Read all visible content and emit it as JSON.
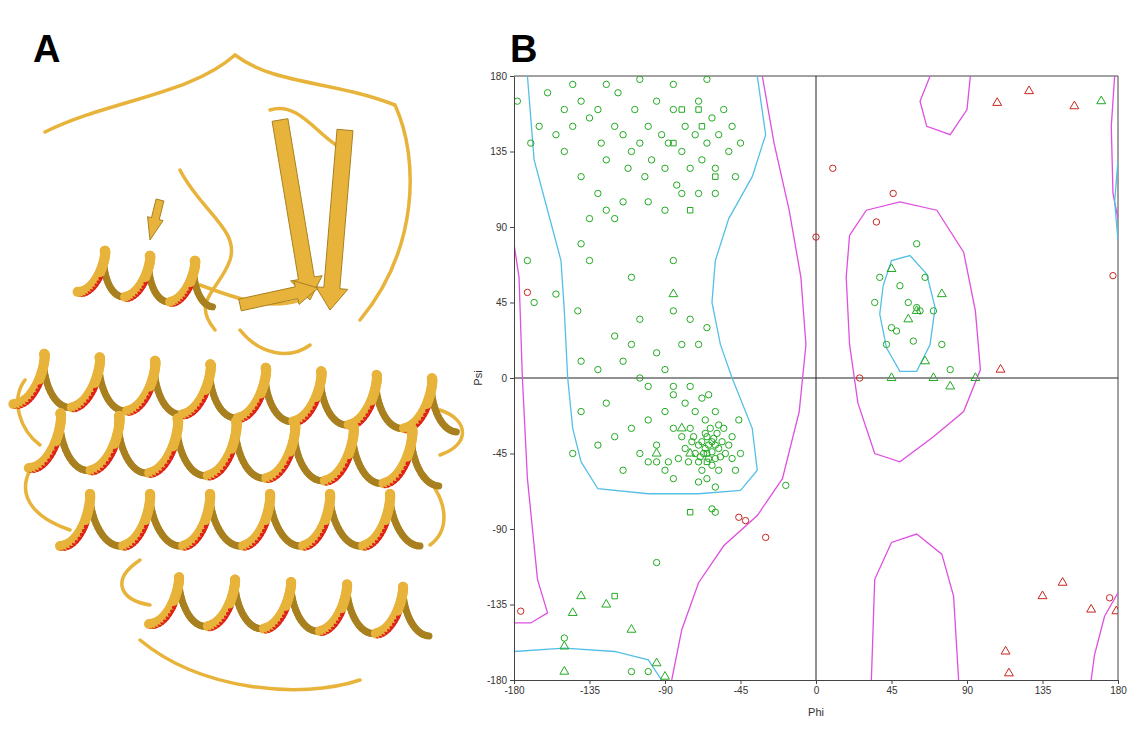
{
  "panel_labels": [
    "A",
    "B"
  ],
  "chart_data": {
    "type": "scatter",
    "x_label": "Phi",
    "y_label": "Psi",
    "xlim": [
      -180,
      180
    ],
    "ylim": [
      -180,
      180
    ],
    "xticks": [
      -180,
      -135,
      -90,
      -45,
      0,
      45,
      90,
      135,
      180
    ],
    "yticks": [
      -180,
      -135,
      -90,
      -45,
      0,
      45,
      90,
      135,
      180
    ],
    "series": [
      {
        "type": "line",
        "color": "#df4fe0",
        "x": [
          -180,
          -177,
          -175,
          -172,
          -166,
          -160,
          -170,
          -180,
          null,
          -32,
          -25,
          -16,
          -9,
          -6,
          -10,
          -20,
          -35,
          -55,
          -70,
          -80,
          -86,
          null,
          20,
          30,
          50,
          72,
          88,
          95,
          98,
          88,
          70,
          50,
          35,
          25,
          20,
          18,
          20,
          null,
          33,
          35,
          45,
          60,
          75,
          82,
          85,
          null,
          68,
          62,
          66,
          80,
          90,
          92,
          null,
          180,
          177,
          176,
          178,
          null,
          180,
          172,
          166,
          164
        ],
        "values": [
          80,
          60,
          0,
          -60,
          -120,
          -140,
          -146,
          -146,
          null,
          180,
          140,
          100,
          60,
          20,
          -20,
          -60,
          -82,
          -100,
          -122,
          -150,
          -180,
          null,
          85,
          100,
          105,
          100,
          75,
          40,
          5,
          -20,
          -35,
          -50,
          -45,
          -15,
          20,
          60,
          85,
          null,
          -180,
          -120,
          -98,
          -93,
          -105,
          -130,
          -180,
          null,
          180,
          165,
          150,
          145,
          160,
          180,
          null,
          95,
          110,
          150,
          180,
          null,
          -128,
          -142,
          -165,
          -180
        ]
      },
      {
        "type": "line",
        "color": "#56bfe6",
        "x": [
          -172,
          -168,
          -160,
          -152,
          -150,
          -148,
          -145,
          -140,
          -130,
          -100,
          -70,
          -45,
          -35,
          -38,
          -50,
          -57,
          -62,
          -60,
          -52,
          -38,
          -30,
          -35,
          null,
          -180,
          -150,
          -120,
          -100,
          -92,
          null,
          40,
          45,
          56,
          66,
          71,
          68,
          60,
          50,
          42,
          38,
          40,
          null,
          180,
          178,
          180
        ],
        "values": [
          180,
          130,
          100,
          70,
          40,
          0,
          -30,
          -50,
          -66,
          -69,
          -69,
          -67,
          -55,
          -30,
          0,
          20,
          45,
          70,
          95,
          120,
          145,
          180,
          null,
          -163,
          -161,
          -163,
          -168,
          -180,
          null,
          55,
          70,
          73,
          62,
          42,
          20,
          4,
          4,
          18,
          38,
          55,
          null,
          130,
          105,
          82
        ]
      },
      {
        "type": "scatter",
        "color": "#22aa22",
        "marker": "circle",
        "x": [
          -178,
          -160,
          -150,
          -145,
          -140,
          -135,
          -130,
          -128,
          -125,
          -120,
          -118,
          -115,
          -112,
          -110,
          -108,
          -105,
          -102,
          -100,
          -98,
          -95,
          -92,
          -90,
          -88,
          -85,
          -83,
          -80,
          -78,
          -75,
          -72,
          -70,
          -68,
          -65,
          -62,
          -60,
          -58,
          -55,
          -52,
          -50,
          -48,
          -45,
          -130,
          -125,
          -120,
          -140,
          -150,
          -155,
          -165,
          -170,
          -135,
          -115,
          -100,
          -90,
          -80,
          -70,
          -60,
          -145,
          -125,
          -105,
          -85,
          -65,
          -140,
          -135,
          -155,
          -142,
          -110,
          -85,
          -120,
          -115,
          -110,
          -105,
          -100,
          -95,
          -90,
          -85,
          -80,
          -75,
          -125,
          -130,
          -140,
          -110,
          -100,
          -95,
          -90,
          -85,
          -120,
          -70,
          -75,
          -65,
          -85,
          -105,
          -70,
          -68,
          -66,
          -64,
          -62,
          -60,
          -58,
          -65,
          -63,
          -67,
          -72,
          -74,
          -60,
          -56,
          -54,
          -70,
          -62,
          -58,
          -66,
          -75,
          -78,
          -80,
          -55,
          -52,
          -50,
          -68,
          -72,
          -60,
          -64,
          -58,
          -76,
          -82,
          -88,
          -90,
          -95,
          -85,
          -65,
          -70,
          -60,
          -48,
          -45,
          -50,
          -46,
          -78,
          -85,
          -68,
          -100,
          -105,
          -115,
          -130,
          -140,
          -145,
          -62,
          -66,
          -69,
          -57,
          -73,
          -61,
          -64,
          -59,
          -150,
          -110,
          -100,
          -95,
          -60,
          -62,
          50,
          55,
          60,
          62,
          45,
          48,
          58,
          65,
          70,
          75,
          80,
          35,
          38,
          60,
          42,
          -172,
          -168,
          -18
        ],
        "values": [
          165,
          170,
          160,
          150,
          165,
          155,
          160,
          140,
          130,
          150,
          170,
          145,
          125,
          135,
          160,
          140,
          120,
          150,
          130,
          165,
          145,
          125,
          140,
          160,
          115,
          135,
          150,
          125,
          145,
          165,
          130,
          140,
          155,
          125,
          145,
          160,
          135,
          150,
          120,
          140,
          110,
          100,
          95,
          120,
          135,
          145,
          150,
          140,
          95,
          105,
          105,
          100,
          110,
          110,
          110,
          175,
          175,
          178,
          175,
          178,
          80,
          70,
          50,
          40,
          60,
          70,
          25,
          10,
          20,
          0,
          -5,
          15,
          5,
          -10,
          20,
          -5,
          -15,
          5,
          10,
          -30,
          -25,
          -40,
          -20,
          -30,
          -35,
          20,
          35,
          30,
          40,
          35,
          -40,
          -38,
          -42,
          -40,
          -44,
          -40,
          -42,
          -35,
          -30,
          -45,
          -45,
          -38,
          -48,
          -38,
          -45,
          -50,
          -52,
          -55,
          -25,
          -30,
          -42,
          -35,
          -30,
          -40,
          -48,
          -55,
          -20,
          -20,
          -10,
          -28,
          -50,
          -48,
          -50,
          -55,
          -50,
          -60,
          -60,
          -62,
          -65,
          -55,
          -45,
          -35,
          -25,
          -15,
          -5,
          -12,
          -50,
          -45,
          -55,
          -40,
          -20,
          -45,
          -38,
          -33,
          -47,
          -47,
          -35,
          -36,
          -48,
          -33,
          -155,
          -175,
          -175,
          -110,
          -80,
          -78,
          55,
          45,
          42,
          40,
          30,
          28,
          22,
          60,
          40,
          20,
          5,
          45,
          60,
          80,
          20,
          70,
          45,
          -64
        ]
      },
      {
        "type": "scatter",
        "color": "#22aa22",
        "marker": "triangle",
        "x": [
          -85,
          -80,
          -95,
          -140,
          -145,
          -150,
          -125,
          -110,
          -95,
          -90,
          -150,
          45,
          55,
          60,
          75,
          65,
          70,
          95,
          80,
          45,
          170,
          -75
        ],
        "values": [
          50,
          -30,
          -45,
          -130,
          -140,
          -160,
          -135,
          -150,
          -170,
          -178,
          -175,
          65,
          35,
          40,
          50,
          10,
          0,
          0,
          -5,
          0,
          165,
          -45
        ]
      },
      {
        "type": "scatter",
        "color": "#22aa22",
        "marker": "square",
        "x": [
          -85,
          -80,
          -60,
          -75,
          -65,
          -75,
          -120,
          -65,
          -70,
          -68
        ],
        "values": [
          140,
          160,
          120,
          100,
          -45,
          -80,
          -130,
          -50,
          160,
          150
        ]
      },
      {
        "type": "scatter",
        "color": "#c8261e",
        "marker": "circle",
        "x": [
          -176,
          -172,
          10,
          46,
          36,
          0,
          -46,
          -30,
          26,
          177,
          175,
          -42
        ],
        "values": [
          -139,
          51,
          125,
          110,
          93,
          84,
          -83,
          -95,
          0,
          61,
          -131,
          -85
        ]
      },
      {
        "type": "scatter",
        "color": "#c8261e",
        "marker": "triangle",
        "x": [
          108,
          127,
          154,
          110,
          135,
          147,
          164,
          113,
          115,
          179
        ],
        "values": [
          164,
          171,
          162,
          5,
          -130,
          -122,
          -138,
          -163,
          -176,
          -139
        ]
      }
    ]
  }
}
